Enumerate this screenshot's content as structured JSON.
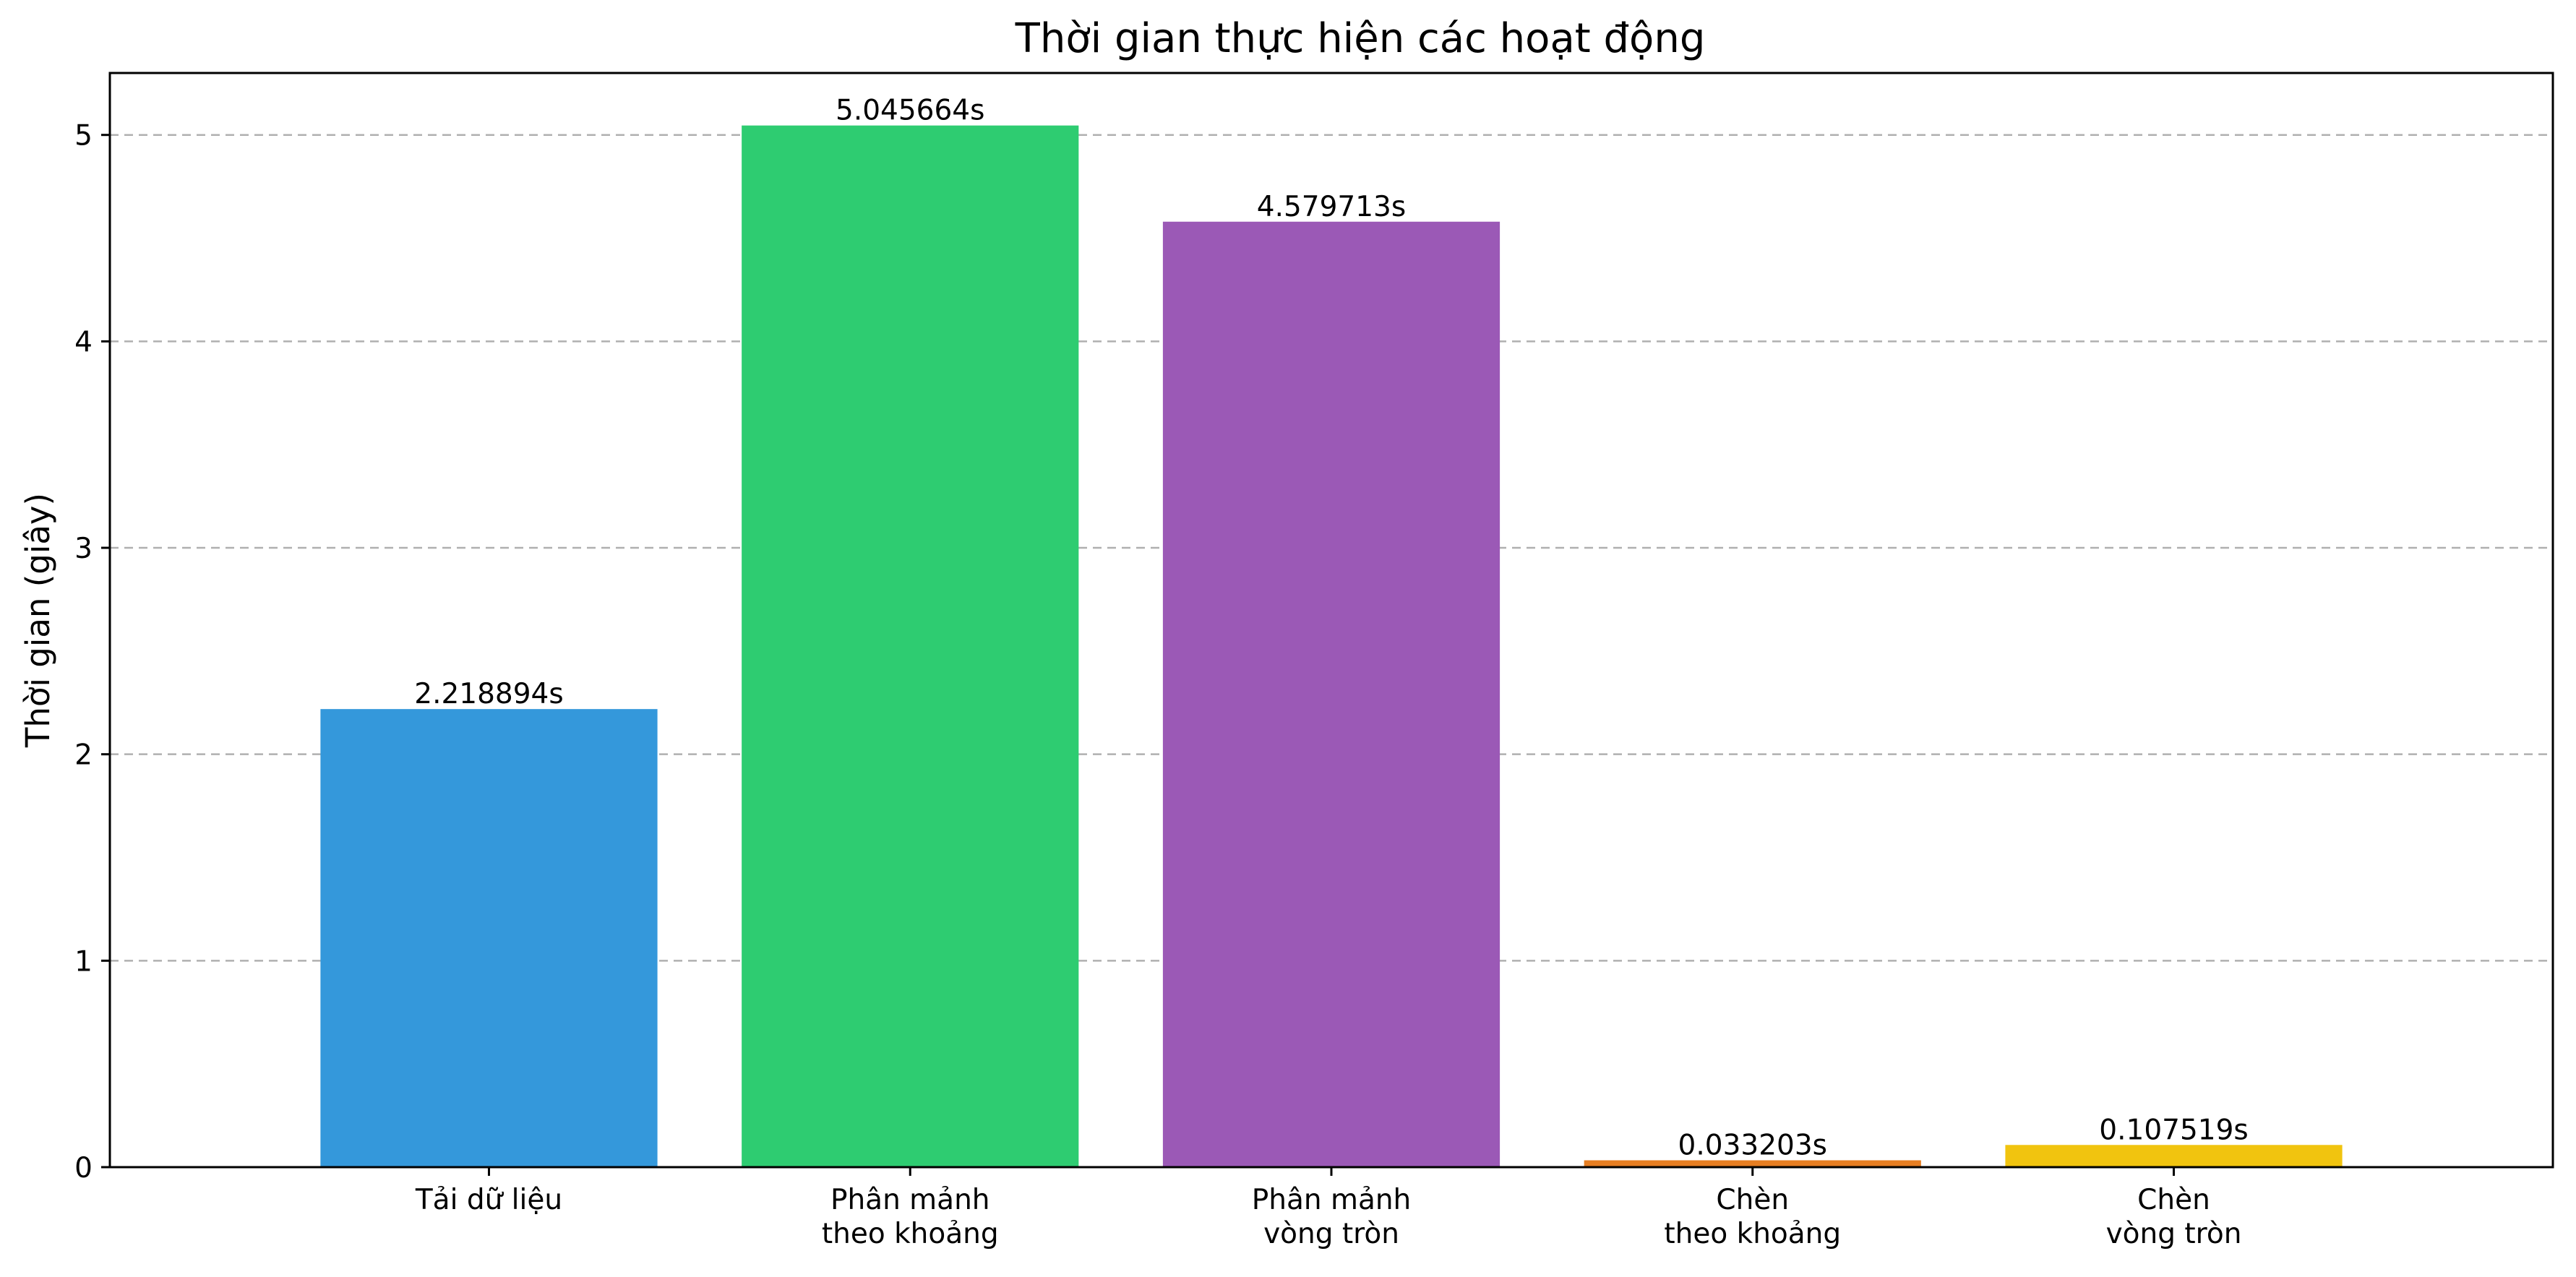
{
  "chart_data": {
    "type": "bar",
    "title": "Thời gian thực hiện các hoạt động",
    "xlabel": "",
    "ylabel": "Thời gian (giây)",
    "ylim": [
      0,
      5.3
    ],
    "yticks": [
      0,
      1,
      2,
      3,
      4,
      5
    ],
    "grid": "y-dashed",
    "categories": [
      [
        "Tải dữ liệu"
      ],
      [
        "Phân mảnh",
        "theo khoảng"
      ],
      [
        "Phân mảnh",
        "vòng tròn"
      ],
      [
        "Chèn",
        "theo khoảng"
      ],
      [
        "Chèn",
        "vòng tròn"
      ]
    ],
    "values": [
      2.218894,
      5.045664,
      4.579713,
      0.033203,
      0.107519
    ],
    "data_labels": [
      "2.218894s",
      "5.045664s",
      "4.579713s",
      "0.033203s",
      "0.107519s"
    ],
    "colors": [
      "#3498db",
      "#2ecc71",
      "#9b59b6",
      "#e67e22",
      "#f1c40f"
    ]
  }
}
